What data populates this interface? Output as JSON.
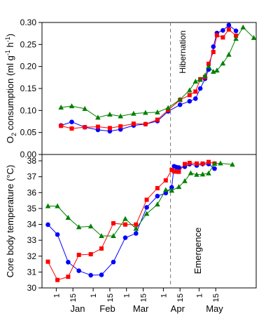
{
  "chart_data": [
    {
      "type": "line",
      "ylabel": "O2 consumption (ml g-1 h-1)",
      "ylabel_parts": {
        "o": "O",
        "sub2": "2",
        "mid": " consumption (ml g",
        "sup1": "-1",
        "h": " h",
        "sup2": "-1",
        "close": ")"
      },
      "ylim": [
        0,
        0.3
      ],
      "yticks": [
        "0.00",
        "0.05",
        "0.10",
        "0.15",
        "0.20",
        "0.25",
        "0.30"
      ],
      "grid": false,
      "annotation": "Hibernation",
      "event_day": 96,
      "colors": {
        "blue": "#0000ff",
        "red": "#ff0000",
        "green": "#008000"
      },
      "series": [
        {
          "color": "#0000ff",
          "marker": "circle",
          "points": [
            [
              4,
              0.066
            ],
            [
              13,
              0.074
            ],
            [
              24,
              0.062
            ],
            [
              35,
              0.056
            ],
            [
              45,
              0.053
            ],
            [
              54,
              0.057
            ],
            [
              65,
              0.066
            ],
            [
              75,
              0.069
            ],
            [
              85,
              0.076
            ],
            [
              94,
              0.098
            ],
            [
              104,
              0.113
            ],
            [
              112,
              0.121
            ],
            [
              117,
              0.127
            ],
            [
              121,
              0.15
            ],
            [
              125,
              0.172
            ],
            [
              128,
              0.193
            ],
            [
              132,
              0.245
            ],
            [
              135,
              0.276
            ],
            [
              140,
              0.282
            ],
            [
              145,
              0.294
            ],
            [
              151,
              0.281
            ]
          ]
        },
        {
          "color": "#ff0000",
          "marker": "square",
          "points": [
            [
              4,
              0.065
            ],
            [
              13,
              0.059
            ],
            [
              24,
              0.062
            ],
            [
              35,
              0.063
            ],
            [
              45,
              0.06
            ],
            [
              54,
              0.064
            ],
            [
              65,
              0.07
            ],
            [
              75,
              0.069
            ],
            [
              85,
              0.079
            ],
            [
              94,
              0.101
            ],
            [
              104,
              0.124
            ],
            [
              112,
              0.135
            ],
            [
              117,
              0.143
            ],
            [
              121,
              0.171
            ],
            [
              125,
              0.176
            ],
            [
              128,
              0.206
            ],
            [
              132,
              0.233
            ],
            [
              135,
              0.271
            ],
            [
              140,
              0.266
            ],
            [
              145,
              0.284
            ],
            [
              151,
              0.27
            ]
          ]
        },
        {
          "color": "#008000",
          "marker": "triangle",
          "points": [
            [
              4,
              0.107
            ],
            [
              13,
              0.11
            ],
            [
              24,
              0.104
            ],
            [
              35,
              0.084
            ],
            [
              45,
              0.091
            ],
            [
              54,
              0.087
            ],
            [
              65,
              0.093
            ],
            [
              75,
              0.095
            ],
            [
              85,
              0.096
            ],
            [
              94,
              0.106
            ],
            [
              104,
              0.125
            ],
            [
              112,
              0.146
            ],
            [
              117,
              0.166
            ],
            [
              121,
              0.17
            ],
            [
              125,
              0.179
            ],
            [
              128,
              0.2
            ],
            [
              132,
              0.188
            ],
            [
              135,
              0.191
            ],
            [
              140,
              0.207
            ],
            [
              145,
              0.227
            ],
            [
              151,
              0.263
            ],
            [
              157,
              0.289
            ],
            [
              166,
              0.265
            ]
          ]
        }
      ]
    },
    {
      "type": "line",
      "ylabel": "Core body temperature (°C)",
      "ylim": [
        30,
        38.4
      ],
      "yticks": [
        "30",
        "31",
        "32",
        "33",
        "34",
        "35",
        "36",
        "37",
        "38"
      ],
      "grid": false,
      "annotation": "Emergence",
      "event_day": 96,
      "xlabel_ticks": [
        "1",
        "15",
        "1",
        "15",
        "1",
        "15",
        "1",
        "15",
        "1",
        "15"
      ],
      "xtick_days": [
        0,
        14,
        31,
        45,
        59,
        73,
        90,
        104,
        120,
        134
      ],
      "month_labels": [
        "Jan",
        "Feb",
        "Mar",
        "Apr",
        "May"
      ],
      "month_label_days": [
        18,
        43,
        71,
        102,
        133
      ],
      "xlim": [
        -12,
        168
      ],
      "series": [
        {
          "color": "#0000ff",
          "marker": "circle",
          "points": [
            [
              -7,
              33.98
            ],
            [
              1,
              33.36
            ],
            [
              10,
              31.62
            ],
            [
              19,
              31.08
            ],
            [
              29,
              30.8
            ],
            [
              38,
              30.82
            ],
            [
              48,
              31.63
            ],
            [
              58,
              33.16
            ],
            [
              67,
              33.43
            ],
            [
              76,
              35.07
            ],
            [
              85,
              35.78
            ],
            [
              92,
              35.97
            ],
            [
              97,
              36.33
            ],
            [
              99,
              37.66
            ],
            [
              101,
              37.6
            ],
            [
              103,
              37.58
            ],
            [
              108,
              37.63
            ],
            [
              112,
              37.79
            ],
            [
              118,
              37.71
            ],
            [
              123,
              37.8
            ],
            [
              128,
              37.8
            ],
            [
              133,
              37.51
            ]
          ]
        },
        {
          "color": "#ff0000",
          "marker": "square",
          "points": [
            [
              -7,
              31.65
            ],
            [
              1,
              30.5
            ],
            [
              10,
              30.7
            ],
            [
              19,
              32.08
            ],
            [
              29,
              32.12
            ],
            [
              38,
              32.48
            ],
            [
              48,
              34.07
            ],
            [
              58,
              33.99
            ],
            [
              67,
              33.99
            ],
            [
              76,
              35.55
            ],
            [
              85,
              36.28
            ],
            [
              92,
              36.77
            ],
            [
              97,
              37.43
            ],
            [
              99,
              37.34
            ],
            [
              101,
              37.32
            ],
            [
              103,
              37.31
            ],
            [
              108,
              37.8
            ],
            [
              112,
              37.87
            ],
            [
              118,
              37.83
            ],
            [
              123,
              37.83
            ],
            [
              128,
              37.93
            ],
            [
              133,
              37.83
            ]
          ]
        },
        {
          "color": "#008000",
          "marker": "triangle",
          "points": [
            [
              -7,
              35.15
            ],
            [
              1,
              35.15
            ],
            [
              10,
              34.42
            ],
            [
              19,
              33.83
            ],
            [
              29,
              33.88
            ],
            [
              38,
              33.27
            ],
            [
              48,
              33.27
            ],
            [
              58,
              34.35
            ],
            [
              67,
              33.73
            ],
            [
              76,
              34.67
            ],
            [
              85,
              35.26
            ],
            [
              92,
              36.17
            ],
            [
              97,
              36.13
            ],
            [
              103,
              36.36
            ],
            [
              108,
              36.73
            ],
            [
              113,
              37.23
            ],
            [
              118,
              37.13
            ],
            [
              123,
              37.15
            ],
            [
              128,
              37.22
            ],
            [
              133,
              37.82
            ],
            [
              138,
              37.85
            ],
            [
              148,
              37.77
            ]
          ]
        }
      ]
    }
  ]
}
